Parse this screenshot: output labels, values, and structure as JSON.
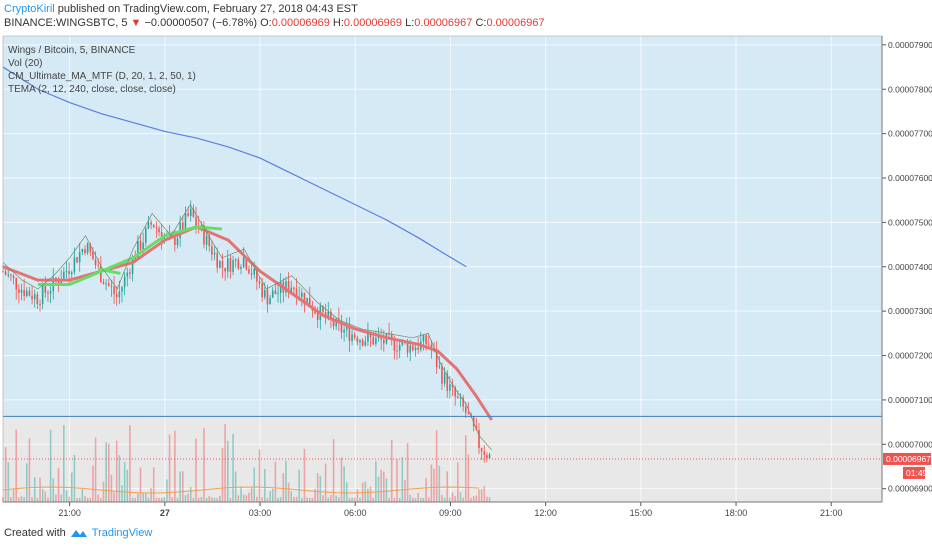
{
  "header": {
    "author": "CryptoKiril",
    "published_text": "published on TradingView.com, February 27, 2018 04:43 EST",
    "symbol": "BINANCE:WINGSBTC, 5",
    "arrow": "▼",
    "change": "−0.00000507 (−6.78%)",
    "o_label": "O:",
    "o_value": "0.00006969",
    "h_label": "H:",
    "h_value": "0.00006969",
    "l_label": "L:",
    "l_value": "0.00006967",
    "c_label": "C:",
    "c_value": "0.00006967"
  },
  "legend": {
    "title": "Wings / Bitcoin, 5, BINANCE",
    "indicators": [
      "Vol (20)",
      "CM_Ultimate_MA_MTF (D, 20, 1, 2, 50, 1)",
      "TEMA (2, 12, 240, close, close, close)"
    ]
  },
  "footer": {
    "created_with": "Created with",
    "brand": "TradingView"
  },
  "colors": {
    "up": "#26a69a",
    "down": "#ef5350",
    "ma_slow": "#e57373",
    "ma_green": "#66dd66",
    "tema_long": "#5b7fe0",
    "bg_blue": "#d6eaf6",
    "bg_gray": "#e8e8e8"
  },
  "chart_data": {
    "type": "candlestick",
    "y_ticks": [
      "0.00007900",
      "0.00007800",
      "0.00007700",
      "0.00007600",
      "0.00007500",
      "0.00007400",
      "0.00007300",
      "0.00007200",
      "0.00007100",
      "0.00007000",
      "0.00006900"
    ],
    "ylim": [
      6.87e-05,
      7.92e-05
    ],
    "x_ticks": [
      "21:00",
      "27",
      "03:00",
      "06:00",
      "09:00",
      "12:00",
      "15:00",
      "18:00",
      "21:00"
    ],
    "x_tick_hours": [
      21,
      24,
      27,
      30,
      33,
      36,
      39,
      42,
      45
    ],
    "xlim_hours": [
      18.9,
      46.6
    ],
    "last_price_label": "0.00006967",
    "countdown_label": "01:49",
    "horizontal_level": 7.063e-05,
    "last_price": 6.967e-05,
    "price_path": [
      [
        18.9,
        7.39e-05
      ],
      [
        19.5,
        7.35e-05
      ],
      [
        20.0,
        7.33e-05
      ],
      [
        20.5,
        7.36e-05
      ],
      [
        21.0,
        7.4e-05
      ],
      [
        21.5,
        7.45e-05
      ],
      [
        22.0,
        7.38e-05
      ],
      [
        22.5,
        7.33e-05
      ],
      [
        23.0,
        7.42e-05
      ],
      [
        23.6,
        7.5e-05
      ],
      [
        24.2,
        7.45e-05
      ],
      [
        24.8,
        7.52e-05
      ],
      [
        25.3,
        7.46e-05
      ],
      [
        25.8,
        7.4e-05
      ],
      [
        26.5,
        7.42e-05
      ],
      [
        27.2,
        7.33e-05
      ],
      [
        28.0,
        7.36e-05
      ],
      [
        28.8,
        7.3e-05
      ],
      [
        29.5,
        7.26e-05
      ],
      [
        30.2,
        7.24e-05
      ],
      [
        31.0,
        7.23e-05
      ],
      [
        31.8,
        7.22e-05
      ],
      [
        32.3,
        7.23e-05
      ],
      [
        32.7,
        7.16e-05
      ],
      [
        33.1,
        7.11e-05
      ],
      [
        33.5,
        7.07e-05
      ],
      [
        33.9,
        7e-05
      ],
      [
        34.3,
        6.967e-05
      ]
    ],
    "ma_slow_path": [
      [
        18.9,
        7.4e-05
      ],
      [
        20.0,
        7.37e-05
      ],
      [
        21.0,
        7.37e-05
      ],
      [
        22.0,
        7.39e-05
      ],
      [
        23.0,
        7.41e-05
      ],
      [
        24.0,
        7.46e-05
      ],
      [
        25.0,
        7.49e-05
      ],
      [
        26.0,
        7.46e-05
      ],
      [
        27.0,
        7.39e-05
      ],
      [
        28.0,
        7.34e-05
      ],
      [
        29.0,
        7.29e-05
      ],
      [
        30.0,
        7.26e-05
      ],
      [
        31.0,
        7.24e-05
      ],
      [
        32.0,
        7.225e-05
      ],
      [
        32.6,
        7.21e-05
      ],
      [
        33.2,
        7.17e-05
      ],
      [
        33.8,
        7.11e-05
      ],
      [
        34.3,
        7.055e-05
      ]
    ],
    "ma_green_segments": [
      [
        [
          20.0,
          7.36e-05
        ],
        [
          21.0,
          7.36e-05
        ],
        [
          22.0,
          7.39e-05
        ],
        [
          23.0,
          7.42e-05
        ],
        [
          24.0,
          7.47e-05
        ],
        [
          25.0,
          7.49e-05
        ],
        [
          25.8,
          7.485e-05
        ]
      ],
      [
        [
          21.9,
          7.395e-05
        ],
        [
          22.6,
          7.385e-05
        ]
      ]
    ],
    "tema_long_path": [
      [
        18.9,
        7.85e-05
      ],
      [
        20.0,
        7.8e-05
      ],
      [
        21.0,
        7.77e-05
      ],
      [
        22.0,
        7.745e-05
      ],
      [
        23.0,
        7.725e-05
      ],
      [
        24.0,
        7.705e-05
      ],
      [
        25.0,
        7.69e-05
      ],
      [
        26.0,
        7.67e-05
      ],
      [
        27.0,
        7.645e-05
      ],
      [
        28.0,
        7.61e-05
      ],
      [
        29.0,
        7.575e-05
      ],
      [
        30.0,
        7.54e-05
      ],
      [
        31.0,
        7.505e-05
      ],
      [
        32.0,
        7.465e-05
      ],
      [
        32.8,
        7.43e-05
      ],
      [
        33.5,
        7.4e-05
      ]
    ]
  }
}
